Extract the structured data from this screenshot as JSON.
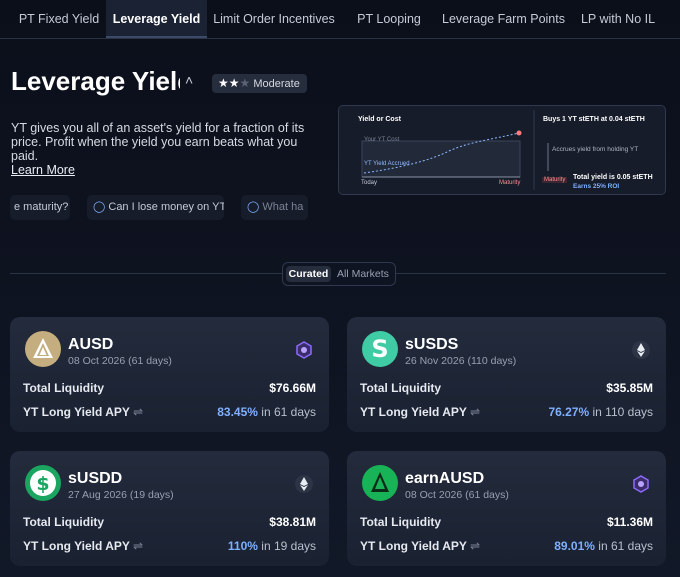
{
  "tabs": [
    "PT Fixed Yield",
    "Leverage Yield",
    "Limit Order Incentives",
    "PT Looping",
    "Leverage Farm Points",
    "LP with No IL"
  ],
  "header": {
    "title": "Leverage Yield",
    "risk": "Moderate",
    "description": "YT gives you all of an asset's yield for a fraction of its price. Profit when the yield you earn beats what you paid.",
    "link": "Learn More"
  },
  "faq": [
    "e maturity?",
    "Can I lose money on YT?",
    "What ha"
  ],
  "diagram": {
    "chart_title": "Yield or Cost",
    "cost_label": "Your YT Cost",
    "yield_label": "YT Yield Accrued",
    "start": "Today",
    "end": "Maturity",
    "step1": "Buys 1 YT stETH at 0.04 stETH",
    "step2": "Accrues yield from holding YT",
    "step3_tag": "Maturity",
    "step3": "Total yield is 0.05 stETH",
    "step3_sub": "Earns 25% ROI"
  },
  "toggle": [
    "Curated",
    "All Markets"
  ],
  "cards": [
    {
      "name": "AUSD",
      "date": "08 Oct 2026 (61 days)",
      "liquidity_label": "Total Liquidity",
      "liquidity": "$76.66M",
      "apy_label": "YT Long Yield APY",
      "apy": "83.45%",
      "apy_period": "in 61 days"
    },
    {
      "name": "sUSDS",
      "date": "26 Nov 2026 (110 days)",
      "liquidity_label": "Total Liquidity",
      "liquidity": "$35.85M",
      "apy_label": "YT Long Yield APY",
      "apy": "76.27%",
      "apy_period": "in 110 days"
    },
    {
      "name": "sUSDD",
      "date": "27 Aug 2026 (19 days)",
      "liquidity_label": "Total Liquidity",
      "liquidity": "$38.81M",
      "apy_label": "YT Long Yield APY",
      "apy": "110%",
      "apy_period": "in 19 days"
    },
    {
      "name": "earnAUSD",
      "date": "08 Oct 2026 (61 days)",
      "liquidity_label": "Total Liquidity",
      "liquidity": "$11.36M",
      "apy_label": "YT Long Yield APY",
      "apy": "89.01%",
      "apy_period": "in 61 days"
    }
  ]
}
